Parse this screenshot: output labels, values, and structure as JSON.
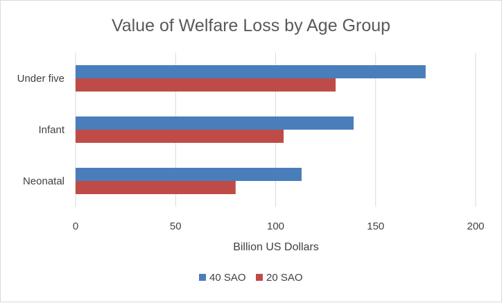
{
  "chart_data": {
    "type": "bar",
    "orientation": "horizontal",
    "title": "Value of Welfare Loss by Age Group",
    "xlabel": "Billion US Dollars",
    "ylabel": "",
    "categories": [
      "Under five",
      "Infant",
      "Neonatal"
    ],
    "series": [
      {
        "name": "40 SAO",
        "color": "#4a7ebb",
        "values": [
          175,
          139,
          113
        ]
      },
      {
        "name": "20 SAO",
        "color": "#be4b48",
        "values": [
          130,
          104,
          80
        ]
      }
    ],
    "xlim": [
      0,
      200
    ],
    "xticks": [
      "0",
      "50",
      "100",
      "150",
      "200"
    ],
    "grid": true,
    "legend_position": "bottom"
  }
}
